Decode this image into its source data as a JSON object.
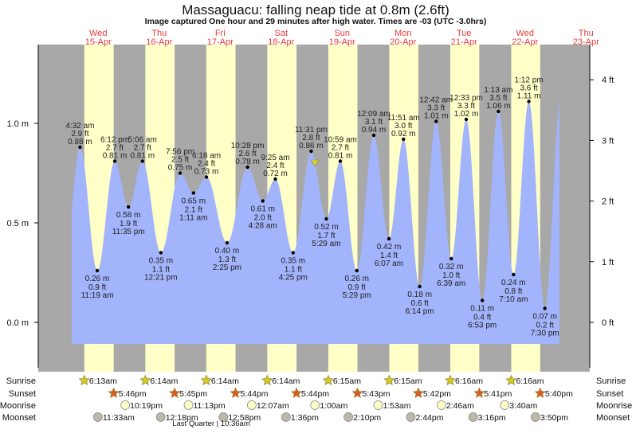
{
  "title": "Massaguacu: falling  neap tide at 0.8m (2.6ft)",
  "subtitle": "Image captured One hour and 29 minutes after high water. Times are -03 (UTC -3.0hrs)",
  "colors": {
    "night": "#a8a8a8",
    "day": "#ffffc8",
    "water": "#a2b4fb",
    "day_label": "#e83a3a",
    "sunrise_icon": "#d4cc22",
    "sunset_icon": "#e05a22",
    "moonrise_icon": "#ffffc8",
    "moonset_icon": "#bdb8aa"
  },
  "chart_data": {
    "type": "area",
    "title": "Massaguacu: falling  neap tide at 0.8m (2.6ft)",
    "y_left": {
      "unit": "m",
      "ticks": [
        "0.0 m",
        "0.5 m",
        "1.0 m"
      ],
      "tick_values": [
        0,
        0.5,
        1.0
      ]
    },
    "y_right": {
      "unit": "ft",
      "ticks": [
        "0 ft",
        "1 ft",
        "2 ft",
        "3 ft",
        "4 ft"
      ],
      "tick_values": [
        0,
        1,
        2,
        3,
        4
      ]
    },
    "days": [
      {
        "weekday": "Wed",
        "date": "15-Apr"
      },
      {
        "weekday": "Thu",
        "date": "16-Apr"
      },
      {
        "weekday": "Fri",
        "date": "17-Apr"
      },
      {
        "weekday": "Sat",
        "date": "18-Apr"
      },
      {
        "weekday": "Sun",
        "date": "19-Apr"
      },
      {
        "weekday": "Mon",
        "date": "20-Apr"
      },
      {
        "weekday": "Tue",
        "date": "21-Apr"
      },
      {
        "weekday": "Wed",
        "date": "22-Apr"
      },
      {
        "weekday": "Thu",
        "date": "23-Apr"
      }
    ],
    "tide_events": [
      {
        "date": "15-Apr",
        "time": "4:32 am",
        "ft": "2.9 ft",
        "m": "0.88 m",
        "height_m": 0.88,
        "type": "high"
      },
      {
        "date": "15-Apr",
        "time": "11:19 am",
        "ft": "0.9 ft",
        "m": "0.26 m",
        "height_m": 0.26,
        "type": "low"
      },
      {
        "date": "15-Apr",
        "time": "6:12 pm",
        "ft": "2.7 ft",
        "m": "0.81 m",
        "height_m": 0.81,
        "type": "high"
      },
      {
        "date": "15-Apr",
        "time": "11:35 pm",
        "ft": "1.9 ft",
        "m": "0.58 m",
        "height_m": 0.58,
        "type": "low"
      },
      {
        "date": "16-Apr",
        "time": "5:06 am",
        "ft": "2.7 ft",
        "m": "0.81 m",
        "height_m": 0.81,
        "type": "high"
      },
      {
        "date": "16-Apr",
        "time": "12:21 pm",
        "ft": "1.1 ft",
        "m": "0.35 m",
        "height_m": 0.35,
        "type": "low"
      },
      {
        "date": "16-Apr",
        "time": "7:56 pm",
        "ft": "2.5 ft",
        "m": "0.75 m",
        "height_m": 0.75,
        "type": "high"
      },
      {
        "date": "17-Apr",
        "time": "1:11 am",
        "ft": "2.1 ft",
        "m": "0.65 m",
        "height_m": 0.65,
        "type": "low"
      },
      {
        "date": "17-Apr",
        "time": "6:18 am",
        "ft": "2.4 ft",
        "m": "0.73 m",
        "height_m": 0.73,
        "type": "high"
      },
      {
        "date": "17-Apr",
        "time": "2:25 pm",
        "ft": "1.3 ft",
        "m": "0.40 m",
        "height_m": 0.4,
        "type": "low"
      },
      {
        "date": "17-Apr",
        "time": "10:28 pm",
        "ft": "2.6 ft",
        "m": "0.78 m",
        "height_m": 0.78,
        "type": "high"
      },
      {
        "date": "18-Apr",
        "time": "4:28 am",
        "ft": "2.0 ft",
        "m": "0.61 m",
        "height_m": 0.61,
        "type": "low"
      },
      {
        "date": "18-Apr",
        "time": "9:25 am",
        "ft": "2.4 ft",
        "m": "0.72 m",
        "height_m": 0.72,
        "type": "high"
      },
      {
        "date": "18-Apr",
        "time": "4:25 pm",
        "ft": "1.1 ft",
        "m": "0.35 m",
        "height_m": 0.35,
        "type": "low"
      },
      {
        "date": "18-Apr",
        "time": "11:31 pm",
        "ft": "2.8 ft",
        "m": "0.86 m",
        "height_m": 0.86,
        "type": "high"
      },
      {
        "date": "19-Apr",
        "time": "5:29 am",
        "ft": "1.7 ft",
        "m": "0.52 m",
        "height_m": 0.52,
        "type": "low"
      },
      {
        "date": "19-Apr",
        "time": "10:59 am",
        "ft": "2.7 ft",
        "m": "0.81 m",
        "height_m": 0.81,
        "type": "high"
      },
      {
        "date": "19-Apr",
        "time": "5:29 pm",
        "ft": "0.9 ft",
        "m": "0.26 m",
        "height_m": 0.26,
        "type": "low"
      },
      {
        "date": "20-Apr",
        "time": "12:09 am",
        "ft": "3.1 ft",
        "m": "0.94 m",
        "height_m": 0.94,
        "type": "high"
      },
      {
        "date": "20-Apr",
        "time": "6:07 am",
        "ft": "1.4 ft",
        "m": "0.42 m",
        "height_m": 0.42,
        "type": "low"
      },
      {
        "date": "20-Apr",
        "time": "11:51 am",
        "ft": "3.0 ft",
        "m": "0.92 m",
        "height_m": 0.92,
        "type": "high"
      },
      {
        "date": "20-Apr",
        "time": "6:14 pm",
        "ft": "0.6 ft",
        "m": "0.18 m",
        "height_m": 0.18,
        "type": "low"
      },
      {
        "date": "21-Apr",
        "time": "12:42 am",
        "ft": "3.3 ft",
        "m": "1.01 m",
        "height_m": 1.01,
        "type": "high"
      },
      {
        "date": "21-Apr",
        "time": "6:39 am",
        "ft": "1.0 ft",
        "m": "0.32 m",
        "height_m": 0.32,
        "type": "low"
      },
      {
        "date": "21-Apr",
        "time": "12:33 pm",
        "ft": "3.3 ft",
        "m": "1.02 m",
        "height_m": 1.02,
        "type": "high"
      },
      {
        "date": "21-Apr",
        "time": "6:53 pm",
        "ft": "0.4 ft",
        "m": "0.11 m",
        "height_m": 0.11,
        "type": "low"
      },
      {
        "date": "22-Apr",
        "time": "1:13 am",
        "ft": "3.5 ft",
        "m": "1.06 m",
        "height_m": 1.06,
        "type": "high"
      },
      {
        "date": "22-Apr",
        "time": "7:10 am",
        "ft": "0.8 ft",
        "m": "0.24 m",
        "height_m": 0.24,
        "type": "low"
      },
      {
        "date": "22-Apr",
        "time": "1:12 pm",
        "ft": "3.6 ft",
        "m": "1.11 m",
        "height_m": 1.11,
        "type": "high"
      },
      {
        "date": "22-Apr",
        "time": "7:30 pm",
        "ft": "0.2 ft",
        "m": "0.07 m",
        "height_m": 0.07,
        "type": "low"
      }
    ],
    "current": {
      "date": "19-Apr",
      "time": "1:00 am",
      "height_m": 0.8
    }
  },
  "almanac": {
    "labels": {
      "sunrise": "Sunrise",
      "sunset": "Sunset",
      "moonrise": "Moonrise",
      "moonset": "Moonset"
    },
    "sunrise": [
      {
        "date": "15-Apr",
        "time": "6:13am"
      },
      {
        "date": "16-Apr",
        "time": "6:14am"
      },
      {
        "date": "17-Apr",
        "time": "6:14am"
      },
      {
        "date": "18-Apr",
        "time": "6:14am"
      },
      {
        "date": "19-Apr",
        "time": "6:15am"
      },
      {
        "date": "20-Apr",
        "time": "6:15am"
      },
      {
        "date": "21-Apr",
        "time": "6:16am"
      },
      {
        "date": "22-Apr",
        "time": "6:16am"
      }
    ],
    "sunset": [
      {
        "date": "15-Apr",
        "time": "5:46pm"
      },
      {
        "date": "16-Apr",
        "time": "5:45pm"
      },
      {
        "date": "17-Apr",
        "time": "5:44pm"
      },
      {
        "date": "18-Apr",
        "time": "5:44pm"
      },
      {
        "date": "19-Apr",
        "time": "5:43pm"
      },
      {
        "date": "20-Apr",
        "time": "5:42pm"
      },
      {
        "date": "21-Apr",
        "time": "5:41pm"
      },
      {
        "date": "22-Apr",
        "time": "5:40pm"
      }
    ],
    "moonrise": [
      {
        "date": "15-Apr",
        "time": "10:19pm"
      },
      {
        "date": "16-Apr",
        "time": "11:13pm"
      },
      {
        "date": "18-Apr",
        "time": "12:07am"
      },
      {
        "date": "19-Apr",
        "time": "1:00am"
      },
      {
        "date": "20-Apr",
        "time": "1:53am"
      },
      {
        "date": "21-Apr",
        "time": "2:46am"
      },
      {
        "date": "22-Apr",
        "time": "3:40am"
      }
    ],
    "moonset": [
      {
        "date": "15-Apr",
        "time": "11:33am"
      },
      {
        "date": "16-Apr",
        "time": "12:18pm"
      },
      {
        "date": "17-Apr",
        "time": "12:58pm"
      },
      {
        "date": "18-Apr",
        "time": "1:36pm"
      },
      {
        "date": "19-Apr",
        "time": "2:10pm"
      },
      {
        "date": "20-Apr",
        "time": "2:44pm"
      },
      {
        "date": "21-Apr",
        "time": "3:16pm"
      },
      {
        "date": "22-Apr",
        "time": "3:50pm"
      }
    ],
    "moon_phase": "Last Quarter | 10:36am"
  }
}
